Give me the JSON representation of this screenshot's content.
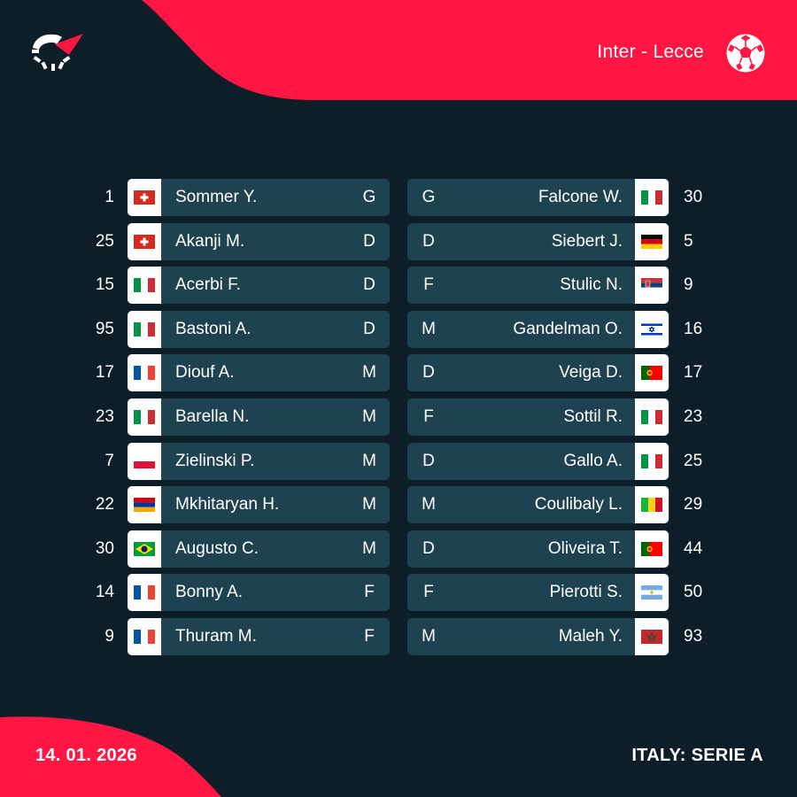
{
  "header": {
    "match_title": "Inter - Lecce",
    "logo_icon": "brand-logo-icon",
    "sport_icon": "football-icon"
  },
  "colors": {
    "background": "#0e1e29",
    "accent": "#ff1744",
    "row": "#1f4250"
  },
  "home": [
    {
      "number": "1",
      "flag": "switzerland",
      "name": "Sommer Y.",
      "position": "G"
    },
    {
      "number": "25",
      "flag": "switzerland",
      "name": "Akanji M.",
      "position": "D"
    },
    {
      "number": "15",
      "flag": "italy",
      "name": "Acerbi F.",
      "position": "D"
    },
    {
      "number": "95",
      "flag": "italy",
      "name": "Bastoni A.",
      "position": "D"
    },
    {
      "number": "17",
      "flag": "france",
      "name": "Diouf A.",
      "position": "M"
    },
    {
      "number": "23",
      "flag": "italy",
      "name": "Barella N.",
      "position": "M"
    },
    {
      "number": "7",
      "flag": "poland",
      "name": "Zielinski P.",
      "position": "M"
    },
    {
      "number": "22",
      "flag": "armenia",
      "name": "Mkhitaryan H.",
      "position": "M"
    },
    {
      "number": "30",
      "flag": "brazil",
      "name": "Augusto C.",
      "position": "M"
    },
    {
      "number": "14",
      "flag": "france",
      "name": "Bonny A.",
      "position": "F"
    },
    {
      "number": "9",
      "flag": "france",
      "name": "Thuram M.",
      "position": "F"
    }
  ],
  "away": [
    {
      "number": "30",
      "flag": "italy",
      "name": "Falcone W.",
      "position": "G"
    },
    {
      "number": "5",
      "flag": "germany",
      "name": "Siebert J.",
      "position": "D"
    },
    {
      "number": "9",
      "flag": "serbia",
      "name": "Stulic N.",
      "position": "F"
    },
    {
      "number": "16",
      "flag": "israel",
      "name": "Gandelman O.",
      "position": "M"
    },
    {
      "number": "17",
      "flag": "portugal",
      "name": "Veiga D.",
      "position": "D"
    },
    {
      "number": "23",
      "flag": "italy",
      "name": "Sottil R.",
      "position": "F"
    },
    {
      "number": "25",
      "flag": "italy",
      "name": "Gallo A.",
      "position": "D"
    },
    {
      "number": "29",
      "flag": "mali",
      "name": "Coulibaly L.",
      "position": "M"
    },
    {
      "number": "44",
      "flag": "portugal",
      "name": "Oliveira T.",
      "position": "D"
    },
    {
      "number": "50",
      "flag": "argentina",
      "name": "Pierotti S.",
      "position": "F"
    },
    {
      "number": "93",
      "flag": "morocco",
      "name": "Maleh Y.",
      "position": "M"
    }
  ],
  "footer": {
    "date": "14. 01. 2026",
    "league": "ITALY: SERIE A"
  }
}
